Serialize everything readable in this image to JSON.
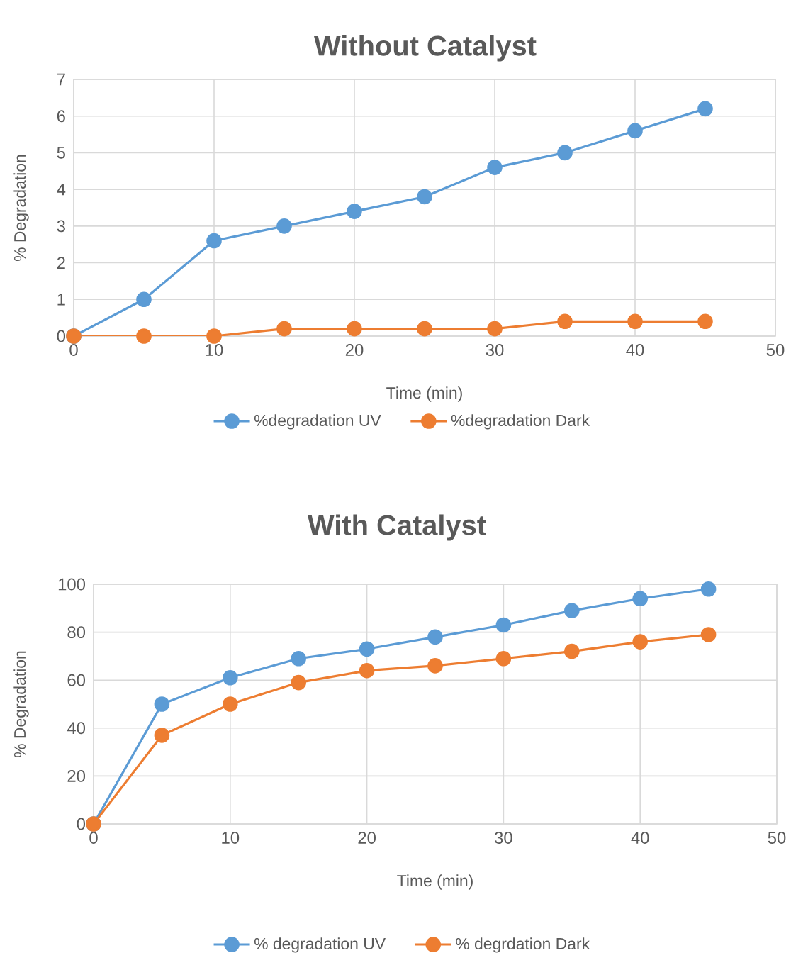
{
  "chart_data": [
    {
      "type": "line",
      "title": "Without Catalyst",
      "xlabel": "Time (min)",
      "ylabel": "% Degradation",
      "x": [
        0,
        5,
        10,
        15,
        20,
        25,
        30,
        35,
        40,
        45
      ],
      "series": [
        {
          "name": "%degradation UV",
          "color": "#5b9bd5",
          "values": [
            0,
            1.0,
            2.6,
            3.0,
            3.4,
            3.8,
            4.6,
            5.0,
            5.6,
            6.2
          ]
        },
        {
          "name": "%degradation Dark",
          "color": "#ed7d31",
          "values": [
            0,
            0,
            0,
            0.2,
            0.2,
            0.2,
            0.2,
            0.4,
            0.4,
            0.4
          ]
        }
      ],
      "xlim": [
        0,
        50
      ],
      "xticks": [
        0,
        10,
        20,
        30,
        40,
        50
      ],
      "ylim": [
        0,
        7
      ],
      "yticks": [
        0,
        1,
        2,
        3,
        4,
        5,
        6,
        7
      ],
      "grid": true,
      "legend": "bottom",
      "marker": "circle",
      "line_style": "solid"
    },
    {
      "type": "line",
      "title": "With Catalyst",
      "xlabel": "Time (min)",
      "ylabel": "% Degradation",
      "x": [
        0,
        5,
        10,
        15,
        20,
        25,
        30,
        35,
        40,
        45
      ],
      "series": [
        {
          "name": "% degradation UV",
          "color": "#5b9bd5",
          "values": [
            0,
            50,
            61,
            69,
            73,
            78,
            83,
            89,
            94,
            98
          ]
        },
        {
          "name": "% degrdation Dark",
          "color": "#ed7d31",
          "values": [
            0,
            37,
            50,
            59,
            64,
            66,
            69,
            72,
            76,
            79
          ]
        }
      ],
      "xlim": [
        0,
        50
      ],
      "xticks": [
        0,
        10,
        20,
        30,
        40,
        50
      ],
      "ylim": [
        0,
        100
      ],
      "yticks": [
        0,
        20,
        40,
        60,
        80,
        100
      ],
      "grid": true,
      "legend": "bottom",
      "marker": "circle",
      "line_style": "solid"
    }
  ]
}
